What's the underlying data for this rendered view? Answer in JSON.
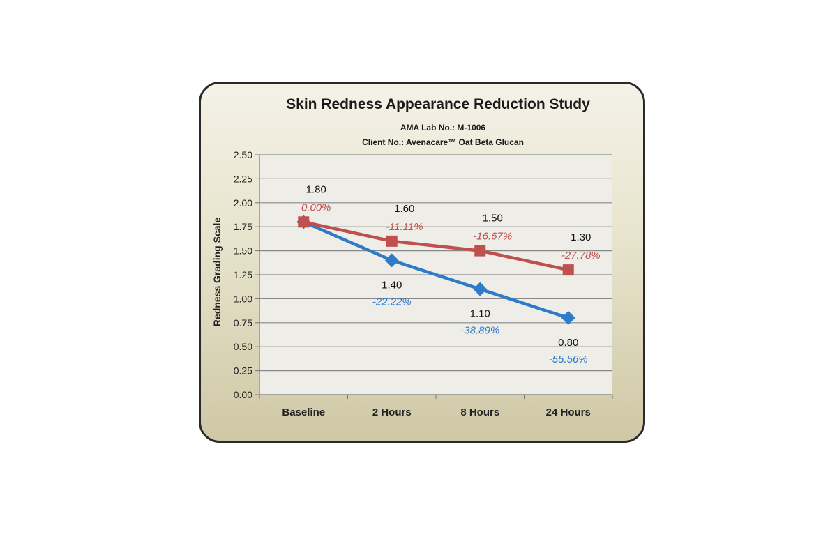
{
  "chart_data": {
    "type": "line",
    "title": "Skin Redness Appearance Reduction Study",
    "subtitle_lines": [
      "AMA Lab No.: M-1006",
      "Client No.:  Avenacare™ Oat Beta Glucan"
    ],
    "ylabel": "Redness Grading Scale",
    "xlabel": "",
    "categories": [
      "Baseline",
      "2 Hours",
      "8 Hours",
      "24 Hours"
    ],
    "yticks": [
      "0.00",
      "0.25",
      "0.50",
      "0.75",
      "1.00",
      "1.25",
      "1.50",
      "1.75",
      "2.00",
      "2.25",
      "2.50"
    ],
    "ylim": [
      0,
      2.5
    ],
    "grid": true,
    "series": [
      {
        "color": "#c0504d",
        "marker": "square",
        "values": [
          1.8,
          1.6,
          1.5,
          1.3
        ],
        "value_labels": [
          "1.80",
          "1.60",
          "1.50",
          "1.30"
        ],
        "pct_labels": [
          "0.00%",
          "-11.11%",
          "-16.67%",
          "-27.78%"
        ]
      },
      {
        "color": "#2e7bc7",
        "marker": "diamond",
        "values": [
          1.8,
          1.4,
          1.1,
          0.8
        ],
        "value_labels": [
          "",
          "1.40",
          "1.10",
          "0.80"
        ],
        "pct_labels": [
          "",
          "-22.22%",
          "-38.89%",
          "-55.56%"
        ]
      }
    ]
  }
}
